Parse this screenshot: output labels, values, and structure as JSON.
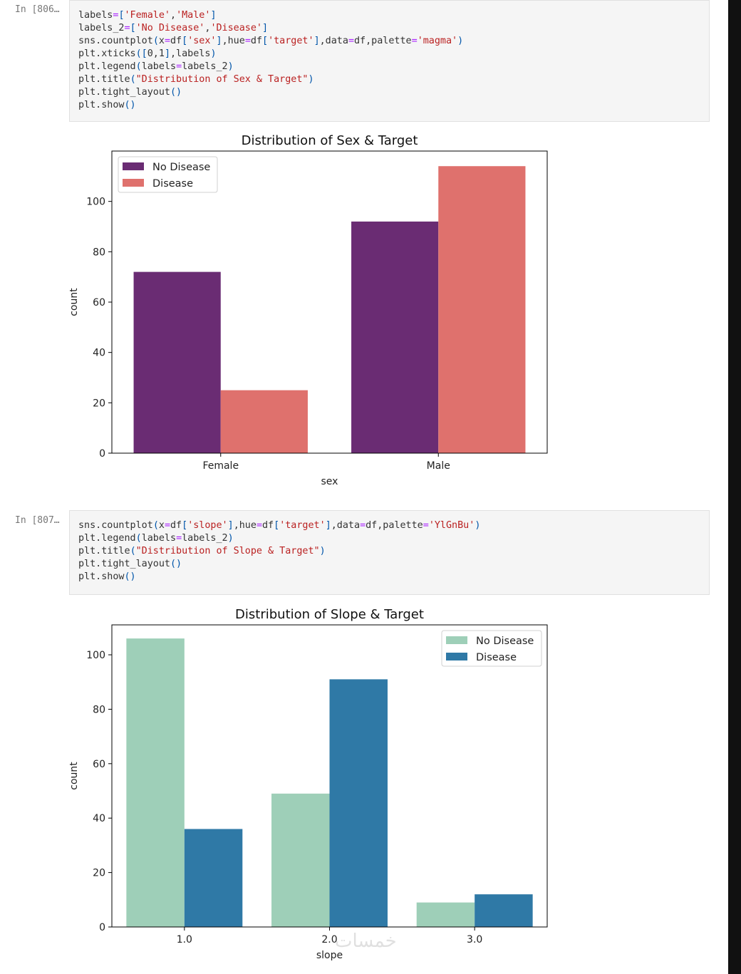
{
  "cells": [
    {
      "prompt": "In [806…",
      "code_lines": [
        [
          [
            "t",
            "labels"
          ],
          [
            "o",
            "="
          ],
          [
            "p",
            "["
          ],
          [
            "s",
            "'Female'"
          ],
          [
            "t",
            ","
          ],
          [
            "s",
            "'Male'"
          ],
          [
            "p",
            "]"
          ]
        ],
        [
          [
            "t",
            "labels_2"
          ],
          [
            "o",
            "="
          ],
          [
            "p",
            "["
          ],
          [
            "s",
            "'No Disease'"
          ],
          [
            "t",
            ","
          ],
          [
            "s",
            "'Disease'"
          ],
          [
            "p",
            "]"
          ]
        ],
        [
          [
            "t",
            "sns.countplot"
          ],
          [
            "p",
            "("
          ],
          [
            "t",
            "x"
          ],
          [
            "o",
            "="
          ],
          [
            "t",
            "df"
          ],
          [
            "p",
            "["
          ],
          [
            "s",
            "'sex'"
          ],
          [
            "p",
            "]"
          ],
          [
            "t",
            ",hue"
          ],
          [
            "o",
            "="
          ],
          [
            "t",
            "df"
          ],
          [
            "p",
            "["
          ],
          [
            "s",
            "'target'"
          ],
          [
            "p",
            "]"
          ],
          [
            "t",
            ",data"
          ],
          [
            "o",
            "="
          ],
          [
            "t",
            "df,palette"
          ],
          [
            "o",
            "="
          ],
          [
            "s",
            "'magma'"
          ],
          [
            "p",
            ")"
          ]
        ],
        [
          [
            "t",
            "plt.xticks"
          ],
          [
            "p",
            "(["
          ],
          [
            "t",
            "0,1"
          ],
          [
            "p",
            "]"
          ],
          [
            "t",
            ",labels"
          ],
          [
            "p",
            ")"
          ]
        ],
        [
          [
            "t",
            "plt.legend"
          ],
          [
            "p",
            "("
          ],
          [
            "t",
            "labels"
          ],
          [
            "o",
            "="
          ],
          [
            "t",
            "labels_2"
          ],
          [
            "p",
            ")"
          ]
        ],
        [
          [
            "t",
            "plt.title"
          ],
          [
            "p",
            "("
          ],
          [
            "s",
            "\"Distribution of Sex & Target\""
          ],
          [
            "p",
            ")"
          ]
        ],
        [
          [
            "t",
            "plt.tight_layout"
          ],
          [
            "p",
            "()"
          ]
        ],
        [
          [
            "t",
            "plt.show"
          ],
          [
            "p",
            "()"
          ]
        ]
      ]
    },
    {
      "prompt": "In [807…",
      "code_lines": [
        [
          [
            "t",
            "sns.countplot"
          ],
          [
            "p",
            "("
          ],
          [
            "t",
            "x"
          ],
          [
            "o",
            "="
          ],
          [
            "t",
            "df"
          ],
          [
            "p",
            "["
          ],
          [
            "s",
            "'slope'"
          ],
          [
            "p",
            "]"
          ],
          [
            "t",
            ",hue"
          ],
          [
            "o",
            "="
          ],
          [
            "t",
            "df"
          ],
          [
            "p",
            "["
          ],
          [
            "s",
            "'target'"
          ],
          [
            "p",
            "]"
          ],
          [
            "t",
            ",data"
          ],
          [
            "o",
            "="
          ],
          [
            "t",
            "df,palette"
          ],
          [
            "o",
            "="
          ],
          [
            "s",
            "'YlGnBu'"
          ],
          [
            "p",
            ")"
          ]
        ],
        [
          [
            "t",
            "plt.legend"
          ],
          [
            "p",
            "("
          ],
          [
            "t",
            "labels"
          ],
          [
            "o",
            "="
          ],
          [
            "t",
            "labels_2"
          ],
          [
            "p",
            ")"
          ]
        ],
        [
          [
            "t",
            "plt.title"
          ],
          [
            "p",
            "("
          ],
          [
            "s",
            "\"Distribution of Slope & Target\""
          ],
          [
            "p",
            ")"
          ]
        ],
        [
          [
            "t",
            "plt.tight_layout"
          ],
          [
            "p",
            "()"
          ]
        ],
        [
          [
            "t",
            "plt.show"
          ],
          [
            "p",
            "()"
          ]
        ]
      ]
    }
  ],
  "watermark": "خمسات",
  "chart_data": [
    {
      "type": "bar",
      "title": "Distribution of Sex & Target",
      "xlabel": "sex",
      "ylabel": "count",
      "categories": [
        "Female",
        "Male"
      ],
      "ylim": [
        0,
        120
      ],
      "yticks": [
        0,
        20,
        40,
        60,
        80,
        100
      ],
      "legend_position": "top-left",
      "grid": false,
      "series": [
        {
          "name": "No Disease",
          "color": "#6a2c73",
          "values": [
            72,
            92
          ]
        },
        {
          "name": "Disease",
          "color": "#df716d",
          "values": [
            25,
            114
          ]
        }
      ]
    },
    {
      "type": "bar",
      "title": "Distribution of Slope & Target",
      "xlabel": "slope",
      "ylabel": "count",
      "categories": [
        "1.0",
        "2.0",
        "3.0"
      ],
      "ylim": [
        0,
        111
      ],
      "yticks": [
        0,
        20,
        40,
        60,
        80,
        100
      ],
      "legend_position": "top-right",
      "grid": false,
      "series": [
        {
          "name": "No Disease",
          "color": "#9ecfb8",
          "values": [
            106,
            49,
            9
          ]
        },
        {
          "name": "Disease",
          "color": "#2f79a6",
          "values": [
            36,
            91,
            12
          ]
        }
      ]
    }
  ]
}
